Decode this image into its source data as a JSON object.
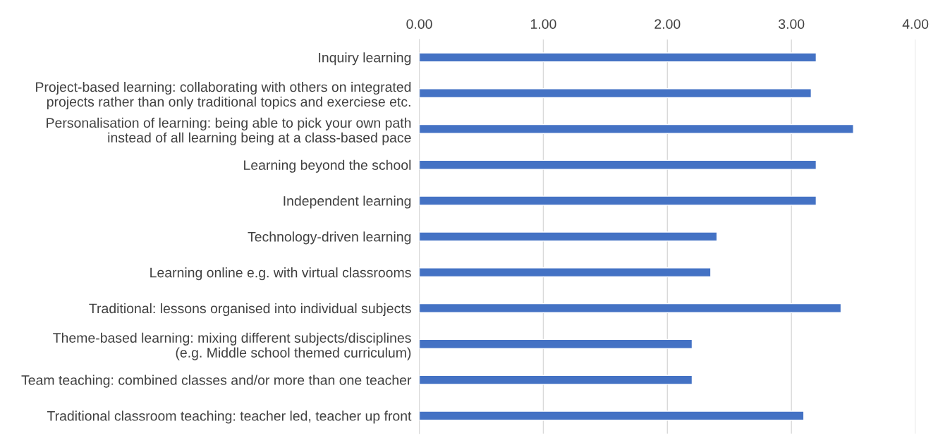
{
  "chart_data": {
    "type": "bar",
    "orientation": "horizontal",
    "categories": [
      "Inquiry learning",
      "Project-based learning: collaborating with others on integrated\nprojects rather than only traditional topics and exerciese etc.",
      "Personalisation of learning: being able to pick your own path\ninstead of all learning being at a class-based pace",
      "Learning beyond the school",
      "Independent learning",
      "Technology-driven learning",
      "Learning online e.g. with virtual classrooms",
      "Traditional: lessons organised into individual subjects",
      "Theme-based learning: mixing different subjects/disciplines\n(e.g. Middle school themed curriculum)",
      "Team teaching: combined classes and/or more than one teacher",
      "Traditional classroom teaching: teacher led, teacher up front"
    ],
    "values": [
      3.2,
      3.16,
      3.5,
      3.2,
      3.2,
      2.4,
      2.35,
      3.4,
      2.2,
      2.2,
      3.1
    ],
    "color": "#4472c4",
    "xlim": [
      0,
      4
    ],
    "xticks": [
      {
        "value": 0,
        "label": "0.00"
      },
      {
        "value": 1,
        "label": "1.00"
      },
      {
        "value": 2,
        "label": "2.00"
      },
      {
        "value": 3,
        "label": "3.00"
      },
      {
        "value": 4,
        "label": "4.00"
      }
    ],
    "grid": "x"
  }
}
